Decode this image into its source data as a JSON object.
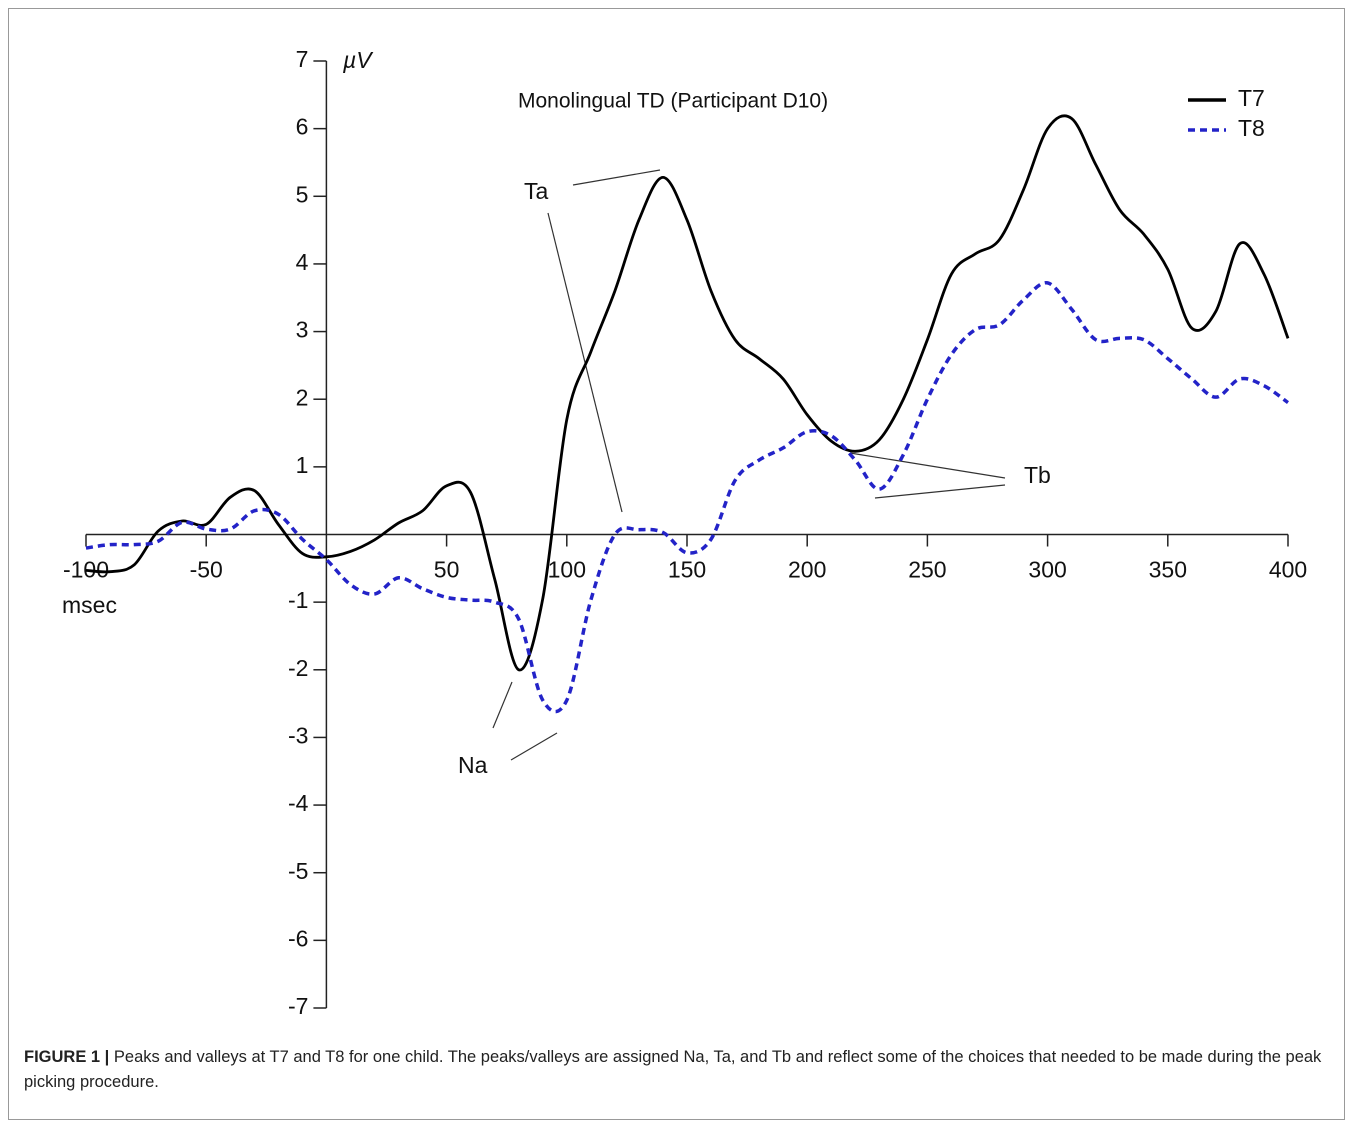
{
  "chart_data": {
    "type": "line",
    "title": "Monolingual TD (Participant D10)",
    "xlabel": "msec",
    "ylabel": "µV",
    "x": [
      -100,
      -90,
      -80,
      -70,
      -60,
      -50,
      -40,
      -30,
      -20,
      -10,
      0,
      10,
      20,
      30,
      40,
      50,
      60,
      70,
      80,
      90,
      100,
      110,
      120,
      130,
      140,
      150,
      160,
      170,
      180,
      190,
      200,
      210,
      220,
      230,
      240,
      250,
      260,
      270,
      280,
      290,
      300,
      310,
      320,
      330,
      340,
      350,
      360,
      370,
      380,
      390,
      400
    ],
    "series": [
      {
        "name": "T7",
        "color": "#000000",
        "style": "solid",
        "values": [
          -0.53,
          -0.55,
          -0.45,
          0.05,
          0.2,
          0.15,
          0.55,
          0.65,
          0.15,
          -0.28,
          -0.33,
          -0.25,
          -0.08,
          0.17,
          0.35,
          0.72,
          0.62,
          -0.66,
          -2.0,
          -0.95,
          1.7,
          2.7,
          3.6,
          4.65,
          5.28,
          4.65,
          3.6,
          2.88,
          2.6,
          2.3,
          1.77,
          1.38,
          1.23,
          1.4,
          2.0,
          2.88,
          3.85,
          4.15,
          4.36,
          5.1,
          6.0,
          6.15,
          5.47,
          4.8,
          4.44,
          3.92,
          3.05,
          3.3,
          4.3,
          3.85,
          2.9
        ]
      },
      {
        "name": "T8",
        "color": "#2323c8",
        "style": "dashed",
        "values": [
          -0.2,
          -0.15,
          -0.15,
          -0.1,
          0.18,
          0.08,
          0.08,
          0.35,
          0.3,
          -0.07,
          -0.37,
          -0.74,
          -0.88,
          -0.64,
          -0.8,
          -0.93,
          -0.97,
          -1.0,
          -1.25,
          -2.45,
          -2.45,
          -0.97,
          0.0,
          0.07,
          0.03,
          -0.27,
          -0.07,
          0.8,
          1.1,
          1.28,
          1.52,
          1.46,
          1.1,
          0.67,
          1.18,
          2.0,
          2.66,
          3.03,
          3.1,
          3.47,
          3.72,
          3.33,
          2.88,
          2.9,
          2.88,
          2.6,
          2.3,
          2.03,
          2.3,
          2.2,
          1.95
        ]
      }
    ],
    "xlim": [
      -100,
      400
    ],
    "ylim": [
      -7,
      7
    ],
    "xticks": [
      -100,
      -50,
      50,
      100,
      150,
      200,
      250,
      300,
      350,
      400
    ],
    "yticks": [
      -7,
      -6,
      -5,
      -4,
      -3,
      -2,
      -1,
      1,
      2,
      3,
      4,
      5,
      6,
      7
    ],
    "legend": "upper right",
    "annotations": [
      "Ta",
      "Tb",
      "Na"
    ]
  },
  "caption": {
    "label": "FIGURE 1 |",
    "text": "Peaks and valleys at T7 and T8 for one child. The peaks/valleys are assigned Na, Ta, and Tb and reflect some of the choices that needed to be made during the peak picking procedure."
  }
}
